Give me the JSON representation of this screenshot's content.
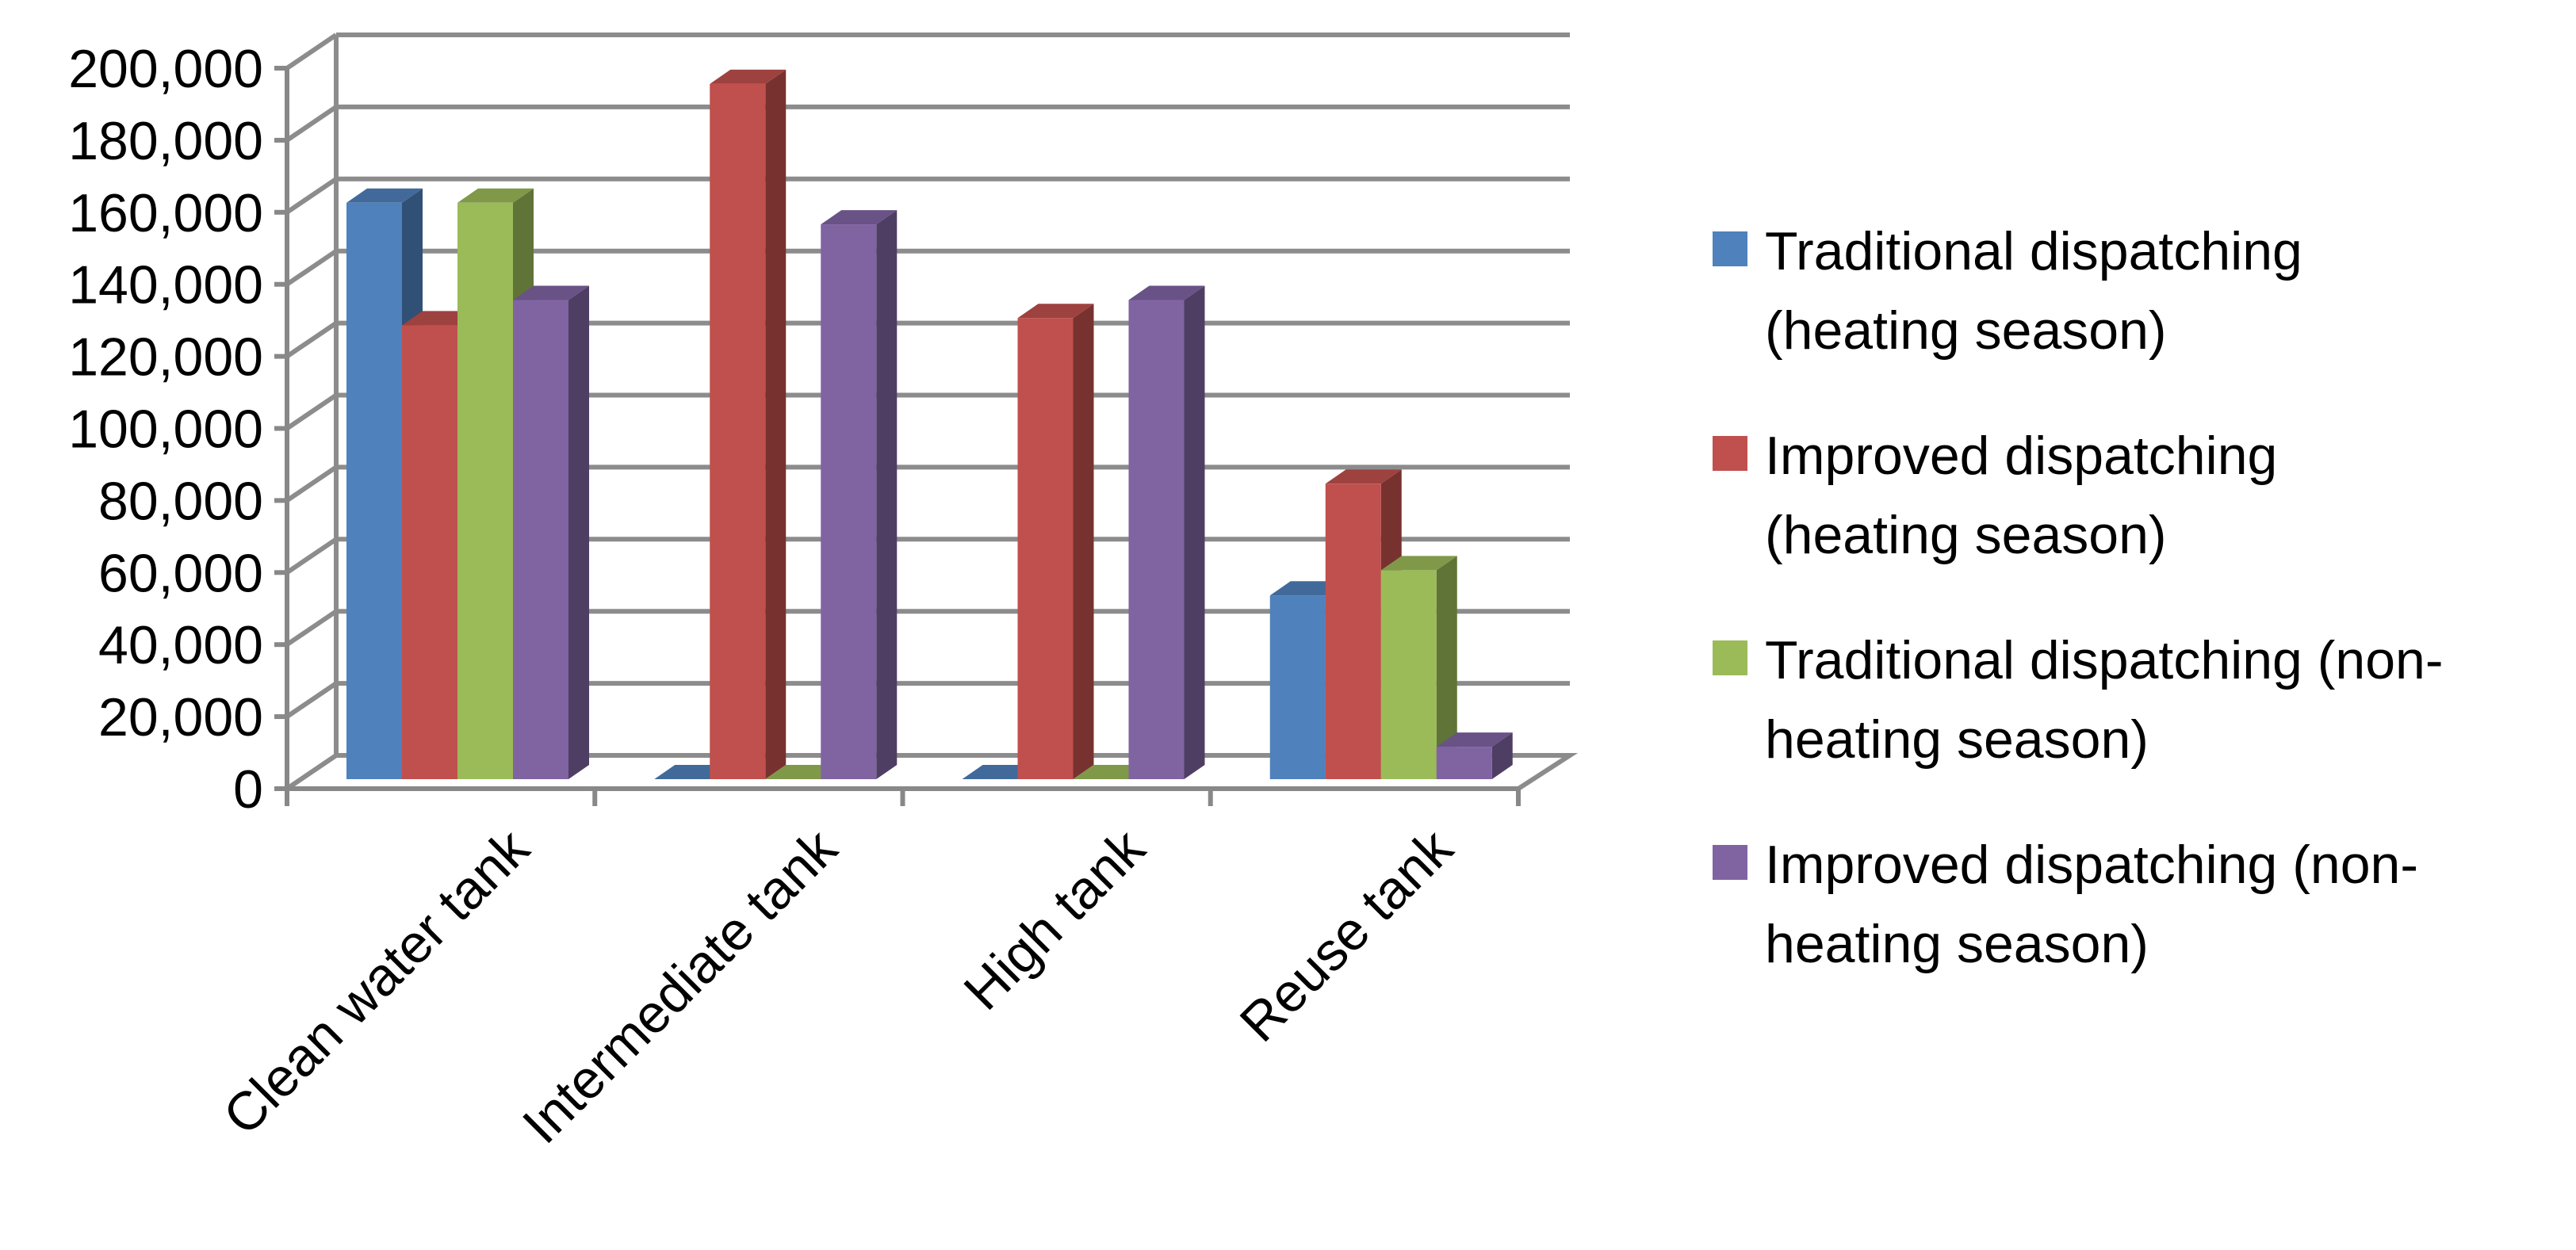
{
  "chart_data": {
    "type": "bar",
    "title": "",
    "xlabel": "",
    "ylabel": "",
    "ylim": [
      0,
      200000
    ],
    "yticks": [
      0,
      20000,
      40000,
      60000,
      80000,
      100000,
      120000,
      140000,
      160000,
      180000,
      200000
    ],
    "ytick_labels": [
      "0",
      "20,000",
      "40,000",
      "60,000",
      "80,000",
      "100,000",
      "120,000",
      "140,000",
      "160,000",
      "180,000",
      "200,000"
    ],
    "grid": true,
    "legend_position": "right",
    "categories": [
      "Clean water tank",
      "Intermediate tank",
      "High tank",
      "Reuse tank"
    ],
    "series": [
      {
        "name_lines": [
          "Traditional dispatching",
          "(heating season)"
        ],
        "color": "#4F81BD",
        "values": [
          160000,
          0,
          0,
          51000
        ]
      },
      {
        "name_lines": [
          "Improved dispatching",
          "(heating season)"
        ],
        "color": "#C0504D",
        "values": [
          126000,
          193000,
          128000,
          82000
        ]
      },
      {
        "name_lines": [
          "Traditional dispatching (non-",
          "heating season)"
        ],
        "color": "#9BBB59",
        "values": [
          160000,
          0,
          0,
          58000
        ]
      },
      {
        "name_lines": [
          "Improved dispatching (non-",
          "heating season)"
        ],
        "color": "#8064A2",
        "values": [
          133000,
          154000,
          133000,
          9000
        ]
      }
    ]
  }
}
